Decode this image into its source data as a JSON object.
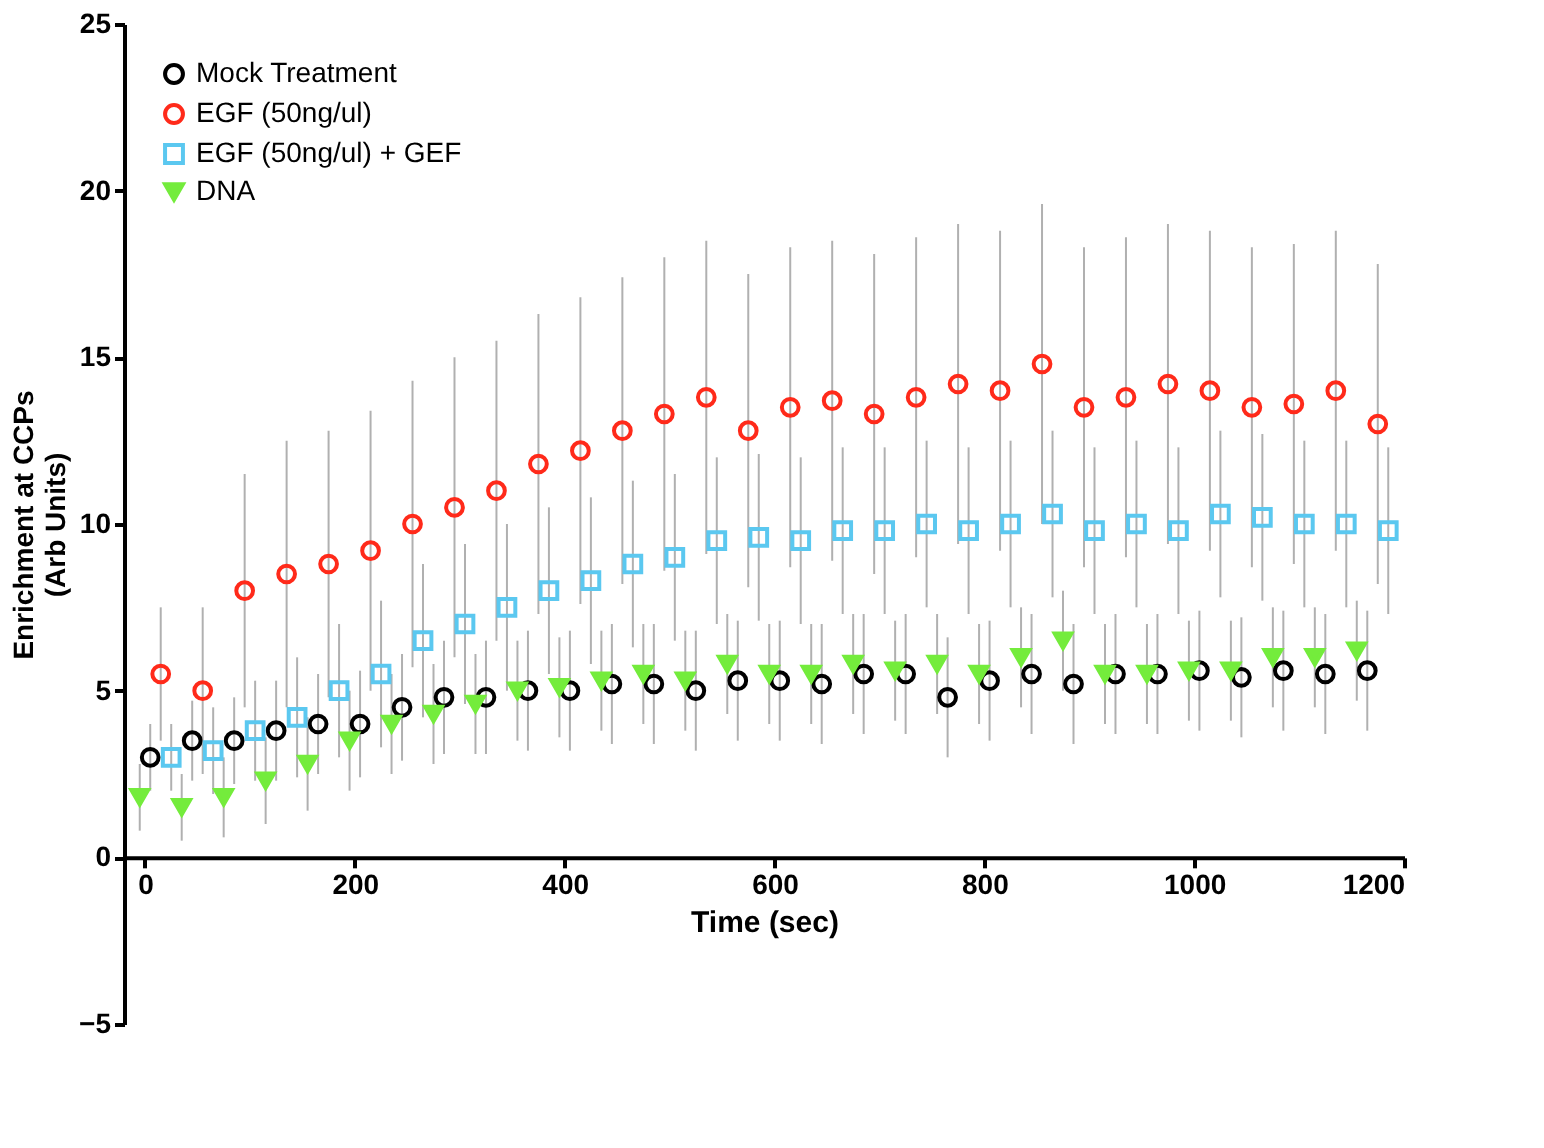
{
  "chart_data": {
    "type": "scatter",
    "xlabel": "Time (sec)",
    "ylabel": "Enrichment at CCPs\n(Arb Units)",
    "series": [
      {
        "name": "Mock Treatment",
        "color": "#000000",
        "marker": "circle",
        "x": [
          5,
          45,
          85,
          125,
          165,
          205,
          245,
          285,
          325,
          365,
          405,
          445,
          485,
          525,
          565,
          605,
          645,
          685,
          725,
          765,
          805,
          845,
          885,
          925,
          965,
          1005,
          1045,
          1085,
          1125,
          1165
        ],
        "values": [
          3,
          3.5,
          3.5,
          3.8,
          4,
          4,
          4.5,
          4.8,
          4.8,
          5,
          5,
          5.2,
          5.2,
          5,
          5.3,
          5.3,
          5.2,
          5.5,
          5.5,
          4.8,
          5.3,
          5.5,
          5.2,
          5.5,
          5.5,
          5.6,
          5.4,
          5.6,
          5.5,
          5.6
        ],
        "errors": [
          1,
          1.2,
          1.3,
          1.5,
          1.5,
          1.6,
          1.6,
          1.7,
          1.7,
          1.8,
          1.8,
          1.8,
          1.8,
          1.8,
          1.8,
          1.8,
          1.8,
          1.8,
          1.8,
          1.8,
          1.8,
          1.8,
          1.8,
          1.8,
          1.8,
          1.8,
          1.8,
          1.8,
          1.8,
          1.8
        ]
      },
      {
        "name": "EGF (50ng/ul)",
        "color": "#ff2a1a",
        "marker": "circle",
        "x": [
          15,
          55,
          95,
          135,
          175,
          215,
          255,
          295,
          335,
          375,
          415,
          455,
          495,
          535,
          575,
          615,
          655,
          695,
          735,
          775,
          815,
          855,
          895,
          935,
          975,
          1015,
          1055,
          1095,
          1135,
          1175
        ],
        "values": [
          5.5,
          5,
          8,
          8.5,
          8.8,
          9.2,
          10,
          10.5,
          11,
          11.8,
          12.2,
          12.8,
          13.3,
          13.8,
          12.8,
          13.5,
          13.7,
          13.3,
          13.8,
          14.2,
          14,
          14.8,
          13.5,
          13.8,
          14.2,
          14,
          13.5,
          13.6,
          14,
          13
        ],
        "errors": [
          2,
          2.5,
          3.5,
          4,
          4,
          4.2,
          4.3,
          4.5,
          4.5,
          4.5,
          4.6,
          4.6,
          4.7,
          4.7,
          4.7,
          4.8,
          4.8,
          4.8,
          4.8,
          4.8,
          4.8,
          4.8,
          4.8,
          4.8,
          4.8,
          4.8,
          4.8,
          4.8,
          4.8,
          4.8
        ]
      },
      {
        "name": "EGF (50ng/ul) + GEF",
        "color": "#5bc8f0",
        "marker": "square",
        "x": [
          25,
          65,
          105,
          145,
          185,
          225,
          265,
          305,
          345,
          385,
          425,
          465,
          505,
          545,
          585,
          625,
          665,
          705,
          745,
          785,
          825,
          865,
          905,
          945,
          985,
          1025,
          1065,
          1105,
          1145,
          1185
        ],
        "values": [
          3,
          3.2,
          3.8,
          4.2,
          5,
          5.5,
          6.5,
          7,
          7.5,
          8,
          8.3,
          8.8,
          9,
          9.5,
          9.6,
          9.5,
          9.8,
          9.8,
          10,
          9.8,
          10,
          10.3,
          9.8,
          10,
          9.8,
          10.3,
          10.2,
          10,
          10,
          9.8
        ],
        "errors": [
          1,
          1.3,
          1.5,
          1.8,
          2,
          2.2,
          2.3,
          2.4,
          2.5,
          2.5,
          2.5,
          2.5,
          2.5,
          2.5,
          2.5,
          2.5,
          2.5,
          2.5,
          2.5,
          2.5,
          2.5,
          2.5,
          2.5,
          2.5,
          2.5,
          2.5,
          2.5,
          2.5,
          2.5,
          2.5
        ]
      },
      {
        "name": "DNA",
        "color": "#74ec3c",
        "marker": "triangle",
        "x": [
          -5,
          35,
          75,
          115,
          155,
          195,
          235,
          275,
          315,
          355,
          395,
          435,
          475,
          515,
          555,
          595,
          635,
          675,
          715,
          755,
          795,
          835,
          875,
          915,
          955,
          995,
          1035,
          1075,
          1115,
          1155
        ],
        "values": [
          1.8,
          1.5,
          1.8,
          2.3,
          2.8,
          3.5,
          4,
          4.3,
          4.6,
          5,
          5.1,
          5.3,
          5.5,
          5.3,
          5.8,
          5.5,
          5.5,
          5.8,
          5.6,
          5.8,
          5.5,
          6,
          6.5,
          5.5,
          5.5,
          5.6,
          5.6,
          6,
          6,
          6.2
        ],
        "errors": [
          1,
          1,
          1.2,
          1.3,
          1.4,
          1.5,
          1.5,
          1.5,
          1.5,
          1.5,
          1.5,
          1.5,
          1.5,
          1.5,
          1.5,
          1.5,
          1.5,
          1.5,
          1.5,
          1.5,
          1.5,
          1.5,
          1.5,
          1.5,
          1.5,
          1.5,
          1.5,
          1.5,
          1.5,
          1.5
        ]
      }
    ],
    "xlim": [
      -20,
      1200
    ],
    "xticks": [
      0,
      200,
      400,
      600,
      800,
      1000,
      1200
    ],
    "ylim": [
      -5,
      25
    ],
    "yticks": [
      -5,
      0,
      5,
      10,
      15,
      20,
      25
    ],
    "grid": false,
    "legend": "top left"
  }
}
